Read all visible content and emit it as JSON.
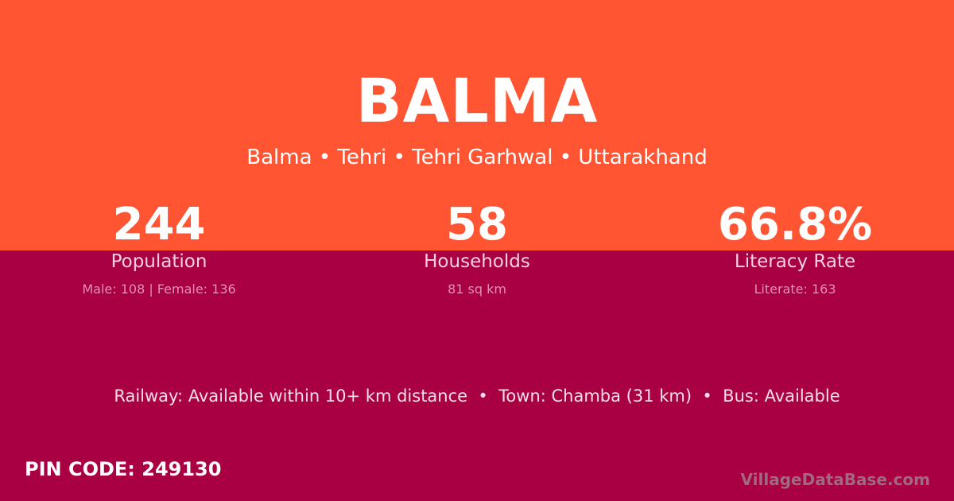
{
  "colors": {
    "top_bg": "#FF5533",
    "bottom_bg": "#A80042"
  },
  "header": {
    "title": "BALMA",
    "breadcrumb": "Balma • Tehri • Tehri Garhwal • Uttarakhand"
  },
  "stats": [
    {
      "value": "244",
      "label": "Population",
      "sub": "Male: 108 | Female: 136"
    },
    {
      "value": "58",
      "label": "Households",
      "sub": "81 sq km"
    },
    {
      "value": "66.8%",
      "label": "Literacy Rate",
      "sub": "Literate: 163"
    }
  ],
  "info": "Railway: Available within 10+ km distance  •  Town: Chamba (31 km)  •  Bus: Available",
  "pin": "PIN CODE: 249130",
  "brand": "VillageDataBase.com"
}
